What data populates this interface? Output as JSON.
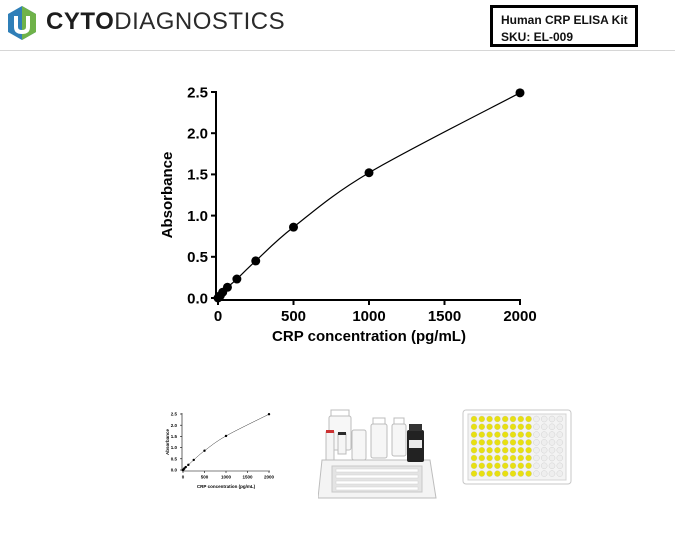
{
  "header": {
    "brand_bold": "CYTO",
    "brand_light": "DIAGNOSTICS",
    "logo_icon": "cyto-logo-icon",
    "product_line1": "Human CRP ELISA Kit",
    "product_line2": "SKU:  EL-009"
  },
  "chart_data": {
    "type": "scatter",
    "title": "",
    "xlabel": "CRP concentration (pg/mL)",
    "ylabel": "Absorbance",
    "xlim": [
      0,
      2000
    ],
    "ylim": [
      0,
      2.5
    ],
    "xticks": [
      0,
      500,
      1000,
      1500,
      2000
    ],
    "yticks": [
      0.0,
      0.5,
      1.0,
      1.5,
      2.0,
      2.5
    ],
    "xtick_labels": [
      "0",
      "500",
      "1000",
      "1500",
      "2000"
    ],
    "ytick_labels": [
      "0.0",
      "0.5",
      "1.0",
      "1.5",
      "2.0",
      "2.5"
    ],
    "grid": false,
    "fit_curve": true,
    "series": [
      {
        "x": [
          0,
          15.6,
          31.25,
          62.5,
          125,
          250,
          500,
          1000,
          2000
        ],
        "y": [
          0.0,
          0.03,
          0.07,
          0.13,
          0.23,
          0.45,
          0.86,
          1.52,
          2.49
        ]
      }
    ]
  },
  "thumbnails": {
    "colors": {
      "plate_well_yellow": "#e8e010",
      "plate_well_clear": "#eeeeee",
      "kit_tray": "#f2f2f2",
      "vial_dark": "#222222"
    }
  }
}
